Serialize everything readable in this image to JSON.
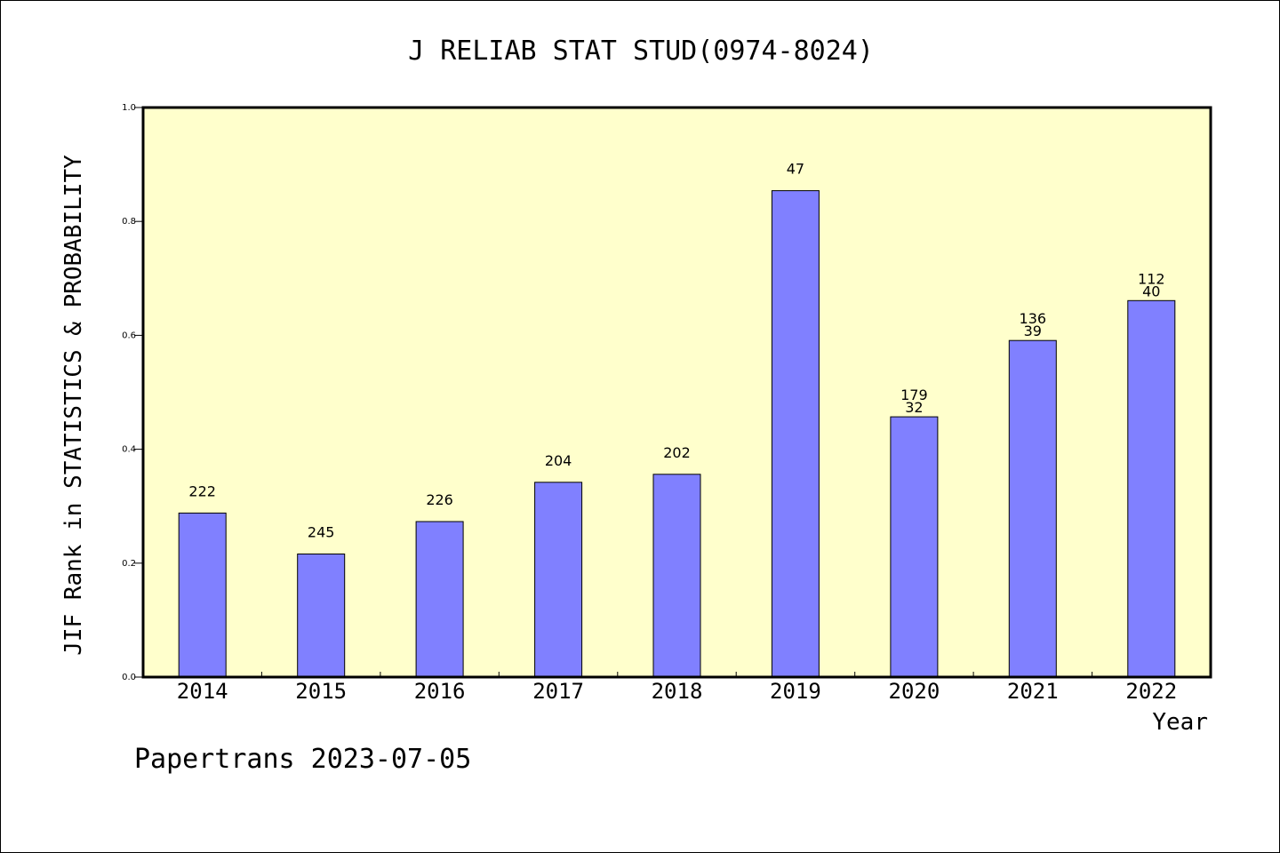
{
  "chart_data": {
    "type": "bar",
    "title": "J RELIAB STAT STUD(0974-8024)",
    "xlabel": "Year",
    "ylabel": "JIF Rank in STATISTICS & PROBABILITY",
    "ylim": [
      0,
      1.0
    ],
    "yticks": [
      "0.0",
      "0.2",
      "0.4",
      "0.6",
      "0.8",
      "1.0"
    ],
    "categories": [
      "2014",
      "2015",
      "2016",
      "2017",
      "2018",
      "2019",
      "2020",
      "2021",
      "2022"
    ],
    "values": [
      0.288,
      0.216,
      0.273,
      0.342,
      0.356,
      0.854,
      0.457,
      0.591,
      0.661
    ],
    "bar_labels": [
      [
        "222"
      ],
      [
        "245"
      ],
      [
        "226"
      ],
      [
        "204"
      ],
      [
        "202"
      ],
      [
        "47"
      ],
      [
        "179",
        "32"
      ],
      [
        "136",
        "39"
      ],
      [
        "112",
        "40"
      ]
    ],
    "plot_background": "#ffffcc",
    "bar_color": "#8080ff",
    "grid": false,
    "legend": "none"
  },
  "footer": {
    "text": "Papertrans 2023-07-05"
  }
}
